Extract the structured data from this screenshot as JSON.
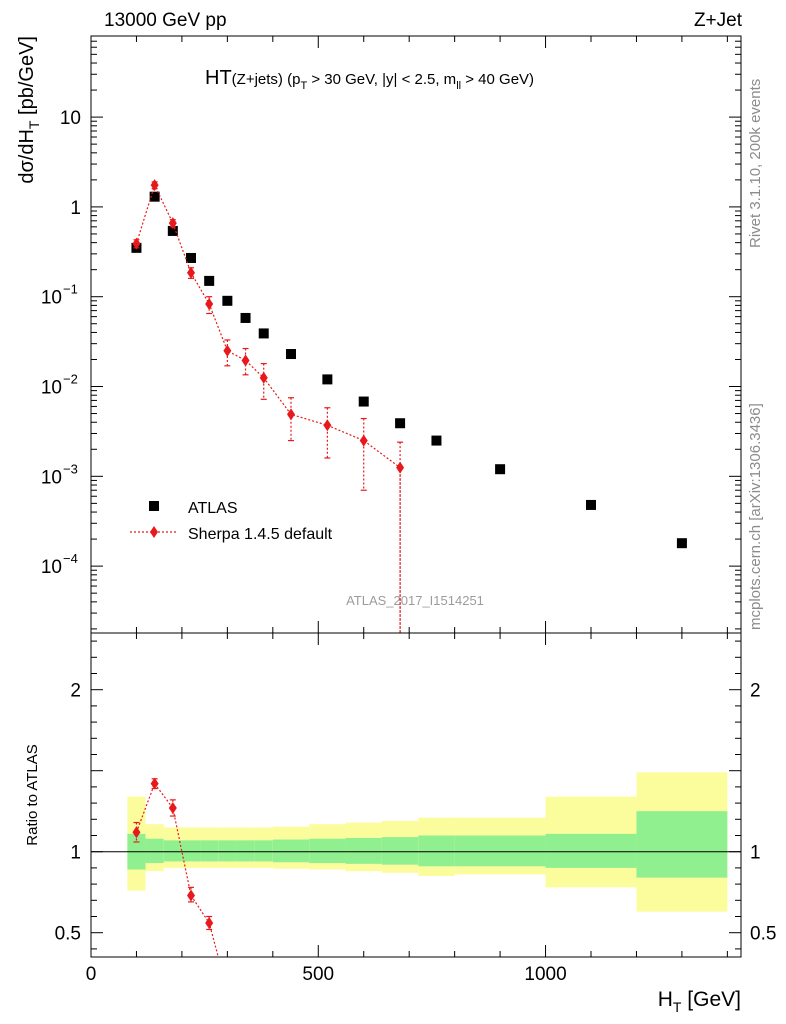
{
  "header": {
    "left": "13000 GeV pp",
    "right": "Z+Jet"
  },
  "side_labels": {
    "rivet": "Rivet 3.1.10,  200k events",
    "mcplots": "mcplots.cern.ch [arXiv:1306.3436]"
  },
  "chart_data": [
    {
      "type": "scatter",
      "panel": "main",
      "title_main": "HT",
      "title_sub": "(Z+jets)",
      "title_rest": "(p_T > 30 GeV, |y| < 2.5, m_ll > 40 GeV)",
      "title_parts": [
        "(p",
        "T",
        " > 30 GeV, |y| < 2.5, m",
        "ll",
        " > 40 GeV)"
      ],
      "ylabel": "dσ/dH_T [pb/GeV]",
      "ylabel_parts": [
        "dσ/dH",
        "T",
        " [pb/GeV]"
      ],
      "yscale": "log",
      "ylim": [
        1.8e-05,
        80
      ],
      "xlim": [
        0,
        1430
      ],
      "y_ticks": [
        {
          "value": 10,
          "label": "10",
          "exp": ""
        },
        {
          "value": 1,
          "label": "1",
          "exp": ""
        },
        {
          "value": 0.1,
          "label": "10",
          "exp": "−1"
        },
        {
          "value": 0.01,
          "label": "10",
          "exp": "−2"
        },
        {
          "value": 0.001,
          "label": "10",
          "exp": "−3"
        },
        {
          "value": 0.0001,
          "label": "10",
          "exp": "−4"
        }
      ],
      "watermark": "ATLAS_2017_I1514251",
      "legend_position": "lower-left",
      "series": [
        {
          "name": "ATLAS",
          "marker": "square",
          "color": "#000000",
          "x": [
            100,
            140,
            180,
            220,
            260,
            300,
            340,
            380,
            440,
            520,
            600,
            680,
            760,
            900,
            1100,
            1300
          ],
          "y": [
            0.35,
            1.3,
            0.54,
            0.27,
            0.15,
            0.09,
            0.058,
            0.039,
            0.023,
            0.012,
            0.0068,
            0.0039,
            0.0025,
            0.0012,
            0.00048,
            0.00018
          ]
        },
        {
          "name": "Sherpa 1.4.5 default",
          "marker": "diamond",
          "color": "#e8191c",
          "x": [
            100,
            140,
            180,
            220,
            260,
            300,
            340,
            380,
            440,
            520,
            600,
            680
          ],
          "y": [
            0.39,
            1.75,
            0.66,
            0.185,
            0.083,
            0.025,
            0.0195,
            0.0125,
            0.0049,
            0.0037,
            0.0025,
            0.00125
          ],
          "y_low": [
            0.35,
            1.6,
            0.6,
            0.16,
            0.065,
            0.017,
            0.0135,
            0.0072,
            0.0025,
            0.0016,
            0.0007,
            1e-05
          ],
          "y_high": [
            0.43,
            1.9,
            0.72,
            0.21,
            0.1,
            0.033,
            0.0265,
            0.018,
            0.0075,
            0.0058,
            0.0044,
            0.0024
          ]
        }
      ]
    },
    {
      "type": "scatter",
      "panel": "ratio",
      "xlabel": "H_T [GeV]",
      "xlabel_parts": [
        "H",
        "T",
        " [GeV]"
      ],
      "ylabel": "Ratio to ATLAS",
      "ylim": [
        0.35,
        2.35
      ],
      "xlim": [
        0,
        1430
      ],
      "x_ticks": [
        0,
        500,
        1000
      ],
      "y_ticks": [
        0.5,
        1,
        2
      ],
      "reference_line": 1,
      "bands": {
        "edges": [
          80,
          120,
          160,
          200,
          240,
          280,
          320,
          360,
          400,
          480,
          560,
          640,
          720,
          800,
          1000,
          1200,
          1400
        ],
        "inner_low": [
          0.89,
          0.93,
          0.94,
          0.94,
          0.94,
          0.94,
          0.94,
          0.94,
          0.935,
          0.93,
          0.925,
          0.92,
          0.91,
          0.91,
          0.9,
          0.84
        ],
        "inner_high": [
          1.11,
          1.08,
          1.07,
          1.07,
          1.07,
          1.07,
          1.07,
          1.07,
          1.075,
          1.08,
          1.085,
          1.09,
          1.1,
          1.1,
          1.11,
          1.25
        ],
        "outer_low": [
          0.76,
          0.88,
          0.9,
          0.9,
          0.9,
          0.9,
          0.9,
          0.9,
          0.895,
          0.89,
          0.88,
          0.87,
          0.85,
          0.86,
          0.78,
          0.63
        ],
        "outer_high": [
          1.34,
          1.17,
          1.15,
          1.15,
          1.15,
          1.15,
          1.15,
          1.15,
          1.155,
          1.17,
          1.18,
          1.19,
          1.21,
          1.21,
          1.34,
          1.49
        ],
        "inner_color": "#90f090",
        "outer_color": "#fbfc9c"
      },
      "series": [
        {
          "name": "Sherpa 1.4.5 default / ATLAS",
          "marker": "diamond",
          "color": "#e8191c",
          "x": [
            100,
            140,
            180,
            220,
            260
          ],
          "y": [
            1.12,
            1.42,
            1.27,
            0.73,
            0.56
          ],
          "y_low": [
            1.06,
            1.39,
            1.22,
            0.69,
            0.52
          ],
          "y_high": [
            1.18,
            1.45,
            1.32,
            0.78,
            0.6
          ],
          "line_exit_x": 280
        }
      ]
    }
  ]
}
